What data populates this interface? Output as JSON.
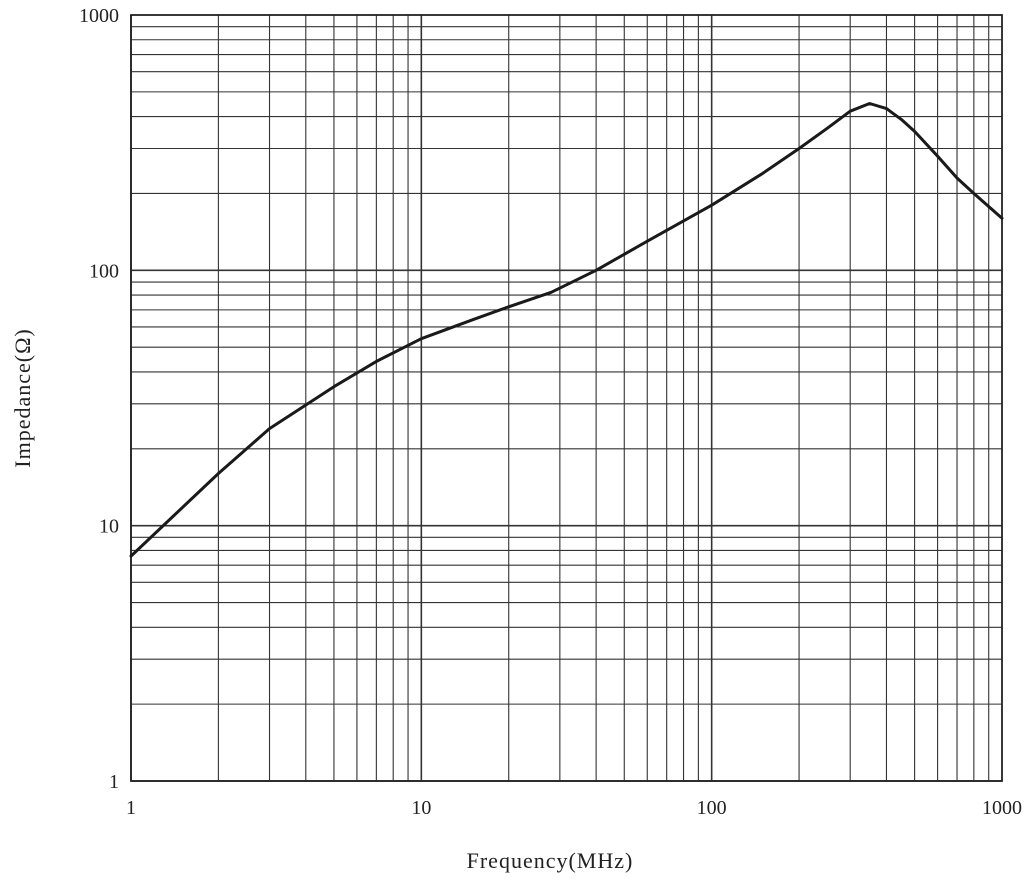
{
  "chart_data": {
    "type": "line",
    "xscale": "log",
    "yscale": "log",
    "xlim": [
      1,
      1000
    ],
    "ylim": [
      1,
      1000
    ],
    "xlabel": "Frequency(MHz)",
    "ylabel": "Impedance(Ω)",
    "x_ticks": [
      "1",
      "10",
      "100",
      "1000"
    ],
    "y_ticks": [
      "1",
      "10",
      "100",
      "1000"
    ],
    "grid": true,
    "line_color": "#1a1a1a",
    "grid_color": "#333333",
    "series": [
      {
        "x": [
          1,
          2,
          3,
          5,
          7,
          10,
          15,
          20,
          28,
          40,
          60,
          100,
          150,
          200,
          250,
          300,
          350,
          400,
          450,
          500,
          600,
          700,
          800,
          1000
        ],
        "y": [
          7.6,
          16,
          24,
          35,
          44,
          54,
          64,
          72,
          82,
          100,
          130,
          180,
          240,
          300,
          360,
          420,
          450,
          430,
          390,
          350,
          280,
          230,
          200,
          160
        ]
      }
    ]
  }
}
